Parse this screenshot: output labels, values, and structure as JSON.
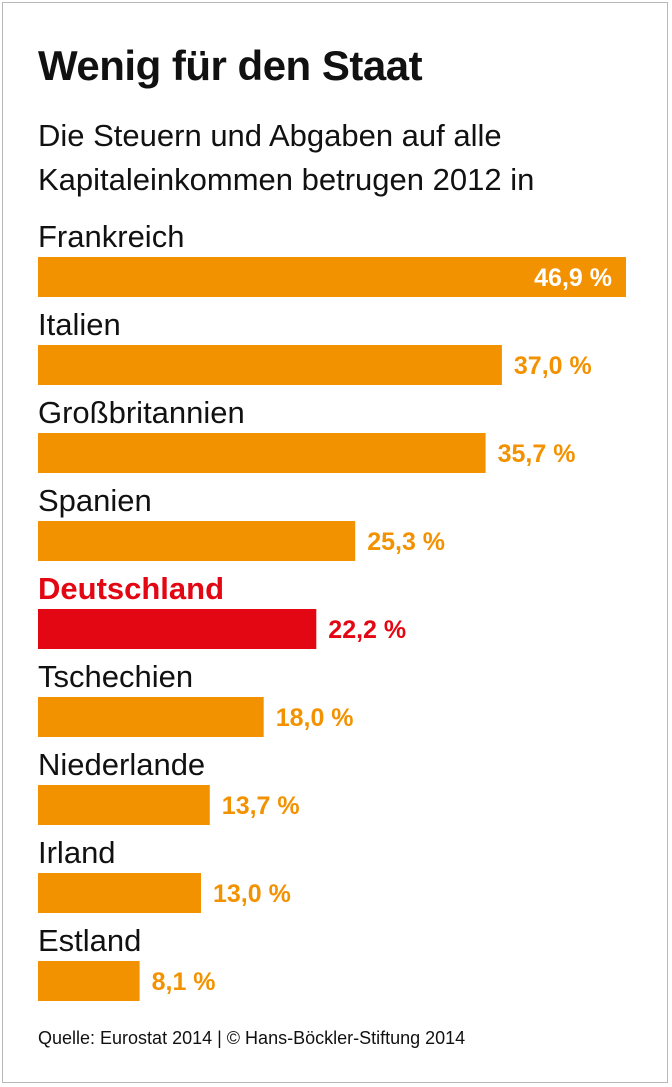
{
  "title": "Wenig für den Staat",
  "subtitle": "Die Steuern und Abgaben auf alle Kapitaleinkommen betrugen 2012 in",
  "source": "Quelle: Eurostat 2014 | © Hans-Böckler-Stiftung 2014",
  "colors": {
    "bar": "#f39200",
    "highlight": "#e30613",
    "text": "#111111",
    "inside_label": "#ffffff"
  },
  "chart_data": {
    "type": "bar",
    "orientation": "horizontal",
    "categories": [
      "Frankreich",
      "Italien",
      "Großbritannien",
      "Spanien",
      "Deutschland",
      "Tschechien",
      "Niederlande",
      "Irland",
      "Estland"
    ],
    "values": [
      46.9,
      37.0,
      35.7,
      25.3,
      22.2,
      18.0,
      13.7,
      13.0,
      8.1
    ],
    "value_labels": [
      "46,9 %",
      "37,0 %",
      "35,7 %",
      "25,3 %",
      "22,2 %",
      "18,0 %",
      "13,7 %",
      "13,0 %",
      "8,1 %"
    ],
    "unit": "%",
    "highlight": "Deutschland",
    "title": "Wenig für den Staat",
    "subtitle": "Die Steuern und Abgaben auf alle Kapitaleinkommen betrugen 2012 in"
  }
}
